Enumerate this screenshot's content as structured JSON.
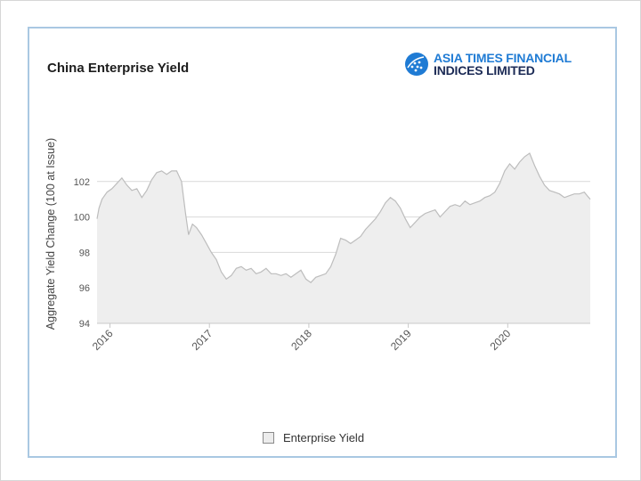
{
  "chart_data": {
    "type": "area",
    "title": "China Enterprise Yield",
    "ylabel": "Aggregate Yield Change (100 at Issue)",
    "xlabel": "",
    "ylim": [
      94,
      104
    ],
    "y_ticks": [
      94,
      96,
      98,
      100,
      102
    ],
    "xlim": [
      2015.87,
      2020.83
    ],
    "x_ticks": [
      2016,
      2017,
      2018,
      2019,
      2020
    ],
    "x_tick_labels": [
      "2016",
      "2017",
      "2018",
      "2019",
      "2020"
    ],
    "grid": true,
    "legend_placement": "bottom-center",
    "series": [
      {
        "name": "Enterprise Yield",
        "color": "#bdbdbd",
        "fill": "#eeeeee",
        "x": [
          2015.87,
          2015.89,
          2015.92,
          2015.97,
          2016.02,
          2016.07,
          2016.12,
          2016.17,
          2016.22,
          2016.27,
          2016.32,
          2016.37,
          2016.42,
          2016.47,
          2016.52,
          2016.57,
          2016.62,
          2016.67,
          2016.72,
          2016.76,
          2016.79,
          2016.81,
          2016.83,
          2016.87,
          2016.92,
          2016.97,
          2017.02,
          2017.07,
          2017.12,
          2017.17,
          2017.22,
          2017.27,
          2017.32,
          2017.37,
          2017.42,
          2017.47,
          2017.52,
          2017.57,
          2017.62,
          2017.67,
          2017.72,
          2017.77,
          2017.82,
          2017.87,
          2017.92,
          2017.97,
          2018.02,
          2018.07,
          2018.12,
          2018.17,
          2018.22,
          2018.27,
          2018.32,
          2018.37,
          2018.42,
          2018.47,
          2018.52,
          2018.57,
          2018.62,
          2018.67,
          2018.72,
          2018.77,
          2018.82,
          2018.87,
          2018.92,
          2018.97,
          2019.02,
          2019.07,
          2019.12,
          2019.17,
          2019.22,
          2019.27,
          2019.32,
          2019.37,
          2019.42,
          2019.47,
          2019.52,
          2019.57,
          2019.62,
          2019.67,
          2019.72,
          2019.77,
          2019.82,
          2019.87,
          2019.92,
          2019.97,
          2020.02,
          2020.07,
          2020.12,
          2020.17,
          2020.22,
          2020.27,
          2020.32,
          2020.37,
          2020.42,
          2020.47,
          2020.52,
          2020.57,
          2020.62,
          2020.67,
          2020.72,
          2020.77,
          2020.8,
          2020.83
        ],
        "values": [
          99.9,
          100.5,
          101.0,
          101.4,
          101.6,
          101.9,
          102.2,
          101.8,
          101.5,
          101.6,
          101.1,
          101.5,
          102.1,
          102.5,
          102.6,
          102.4,
          102.6,
          102.6,
          102.0,
          100.2,
          99.0,
          99.3,
          99.6,
          99.4,
          99.0,
          98.5,
          98.0,
          97.6,
          96.9,
          96.5,
          96.7,
          97.1,
          97.2,
          97.0,
          97.1,
          96.8,
          96.9,
          97.1,
          96.8,
          96.8,
          96.7,
          96.8,
          96.6,
          96.8,
          97.0,
          96.5,
          96.3,
          96.6,
          96.7,
          96.8,
          97.2,
          97.9,
          98.8,
          98.7,
          98.5,
          98.7,
          98.9,
          99.3,
          99.6,
          99.9,
          100.3,
          100.8,
          101.1,
          100.9,
          100.5,
          99.9,
          99.4,
          99.7,
          100.0,
          100.2,
          100.3,
          100.4,
          100.0,
          100.3,
          100.6,
          100.7,
          100.6,
          100.9,
          100.7,
          100.8,
          100.9,
          101.1,
          101.2,
          101.4,
          101.9,
          102.6,
          103.0,
          102.7,
          103.1,
          103.4,
          103.6,
          102.9,
          102.3,
          101.8,
          101.5,
          101.4,
          101.3,
          101.1,
          101.2,
          101.3,
          101.3,
          101.4,
          101.2,
          101.0
        ]
      }
    ]
  }
}
